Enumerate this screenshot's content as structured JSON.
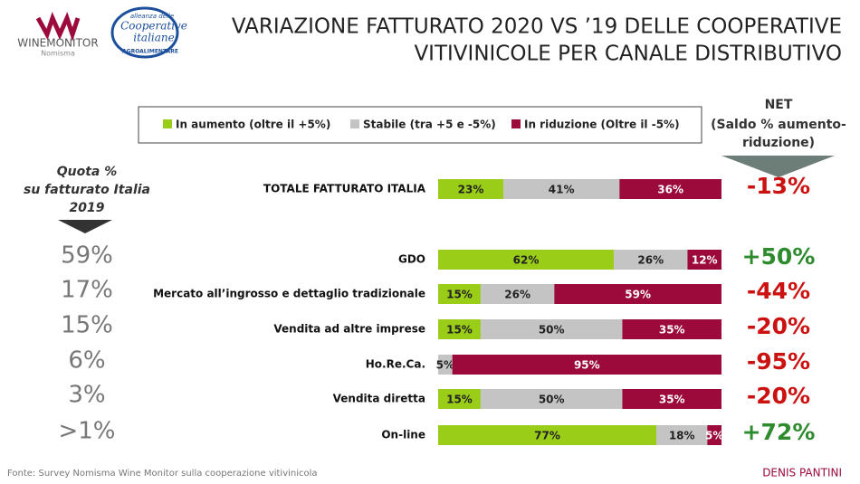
{
  "header": {
    "title_lines": [
      "VARIAZIONE FATTURATO 2020 VS ’19 DELLE COOPERATIVE",
      "VITIVINICOLE PER CANALE DISTRIBUTIVO"
    ],
    "logo_left": [
      "WINEMONITOR",
      "Nomisma"
    ],
    "logo_right": [
      "alleanza delle",
      "Cooperative",
      "italiane",
      "AGROALIMENTARE"
    ]
  },
  "chart_data": {
    "type": "bar",
    "orientation": "horizontal",
    "stacked": true,
    "legend": "top",
    "categories": [
      "TOTALE FATTURATO ITALIA",
      "GDO",
      "Mercato all’ingrosso e dettaglio tradizionale",
      "Vendita ad altre imprese",
      "Ho.Re.Ca.",
      "Vendita diretta",
      "On-line"
    ],
    "series": [
      {
        "name": "In aumento (oltre il +5%)",
        "color": "#9acd18",
        "values": [
          23,
          62,
          15,
          15,
          0,
          15,
          77
        ],
        "value_labels": [
          "23%",
          "62%",
          "15%",
          "15%",
          null,
          "15%",
          "77%"
        ]
      },
      {
        "name": "Stabile (tra +5 e -5%)",
        "color": "#c4c4c4",
        "values": [
          41,
          26,
          26,
          50,
          5,
          50,
          18
        ],
        "value_labels": [
          "41%",
          "26%",
          "26%",
          "50%",
          "5%",
          "50%",
          "18%"
        ]
      },
      {
        "name": "In riduzione (Oltre il -5%)",
        "color": "#9b0a3a",
        "values": [
          36,
          12,
          59,
          35,
          95,
          35,
          5
        ],
        "value_labels": [
          "36%",
          "12%",
          "59%",
          "35%",
          "95%",
          "35%",
          "5%"
        ]
      }
    ]
  },
  "quota": {
    "title_lines": [
      "Quota %",
      "su fatturato Italia",
      "2019"
    ],
    "labels": [
      null,
      "59%",
      "17%",
      "15%",
      "6%",
      "3%",
      ">1%"
    ]
  },
  "net": {
    "title_lines": [
      "NET",
      "(Saldo % aumento-",
      "riduzione)"
    ],
    "values": [
      -13,
      50,
      -44,
      -20,
      -95,
      -20,
      72
    ],
    "value_labels": [
      "-13%",
      "+50%",
      "-44%",
      "-20%",
      "-95%",
      "-20%",
      "+72%"
    ],
    "positive_color": "#2e8b2e",
    "negative_color": "#cc1111"
  },
  "footer": {
    "source": "Fonte: Survey Nomisma Wine Monitor sulla cooperazione vitivinicola",
    "author": "DENIS PANTINI"
  }
}
